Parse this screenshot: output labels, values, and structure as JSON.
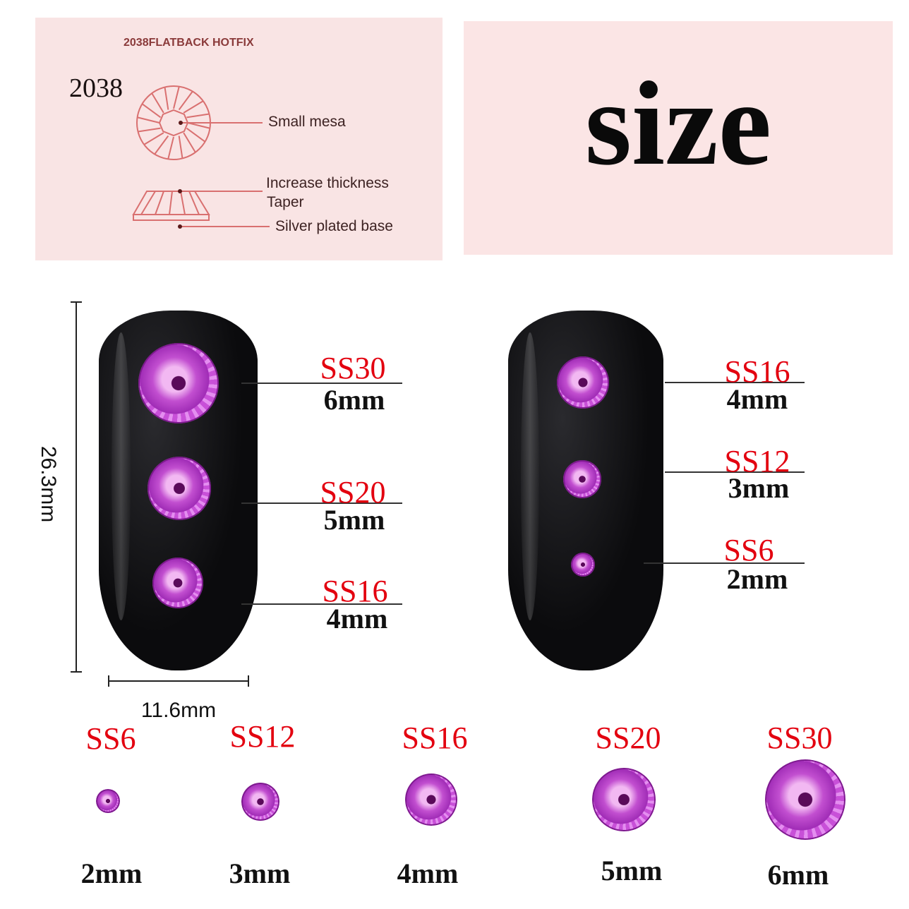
{
  "structure_panel": {
    "title": "2038FLATBACK HOTFIX",
    "model": "2038",
    "labels": [
      "Small mesa",
      "Increase thickness",
      "Taper",
      "Silver plated base"
    ]
  },
  "size_panel": {
    "heading": "size"
  },
  "dimensions": {
    "height": "26.3mm",
    "width": "11.6mm"
  },
  "left_nail": [
    {
      "ss": "SS30",
      "mm": "6mm"
    },
    {
      "ss": "SS20",
      "mm": "5mm"
    },
    {
      "ss": "SS16",
      "mm": "4mm"
    }
  ],
  "right_nail": [
    {
      "ss": "SS16",
      "mm": "4mm"
    },
    {
      "ss": "SS12",
      "mm": "3mm"
    },
    {
      "ss": "SS6",
      "mm": "2mm"
    }
  ],
  "size_row": [
    {
      "ss": "SS6",
      "mm": "2mm"
    },
    {
      "ss": "SS12",
      "mm": "3mm"
    },
    {
      "ss": "SS16",
      "mm": "4mm"
    },
    {
      "ss": "SS20",
      "mm": "5mm"
    },
    {
      "ss": "SS30",
      "mm": "6mm"
    }
  ],
  "colors": {
    "ss_label": "#e3000f",
    "gem": "#b53cc8",
    "panel": "#f9e4e4",
    "diagram_line": "#d97070"
  }
}
